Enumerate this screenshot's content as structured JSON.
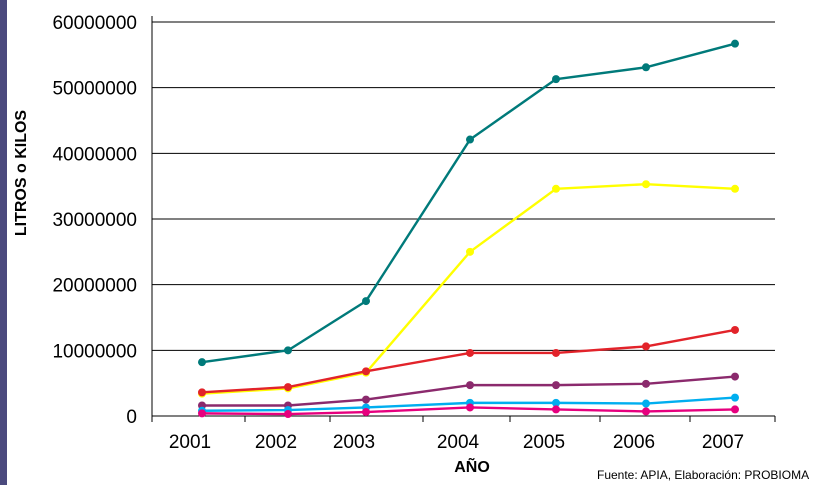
{
  "chart_data": {
    "type": "line",
    "xlabel": "AÑO",
    "ylabel": "LITROS o KILOS",
    "x": [
      "2001",
      "2002",
      "2003",
      "2004",
      "2005",
      "2006",
      "2007"
    ],
    "ylim": [
      0,
      60000000
    ],
    "yticks": [
      "0",
      "10000000",
      "20000000",
      "30000000",
      "40000000",
      "50000000",
      "60000000"
    ],
    "grid": "horizontal",
    "series": [
      {
        "color": "#007a7a",
        "values": [
          8200000,
          10000000,
          17500000,
          42100000,
          51300000,
          53100000,
          56700000
        ]
      },
      {
        "color": "#ffff00",
        "values": [
          3400000,
          4200000,
          6600000,
          25000000,
          34600000,
          35300000,
          34600000
        ]
      },
      {
        "color": "#e2232a",
        "values": [
          3600000,
          4400000,
          6800000,
          9600000,
          9600000,
          10600000,
          13100000
        ]
      },
      {
        "color": "#8b2a6d",
        "values": [
          1600000,
          1600000,
          2500000,
          4700000,
          4700000,
          4900000,
          6000000
        ]
      },
      {
        "color": "#00aeef",
        "values": [
          800000,
          900000,
          1300000,
          2000000,
          2000000,
          1900000,
          2800000
        ]
      },
      {
        "color": "#e6007e",
        "values": [
          400000,
          300000,
          600000,
          1300000,
          1000000,
          700000,
          1000000
        ]
      }
    ],
    "source_note": "Fuente: APIA, Elaboración: PROBIOMA"
  }
}
